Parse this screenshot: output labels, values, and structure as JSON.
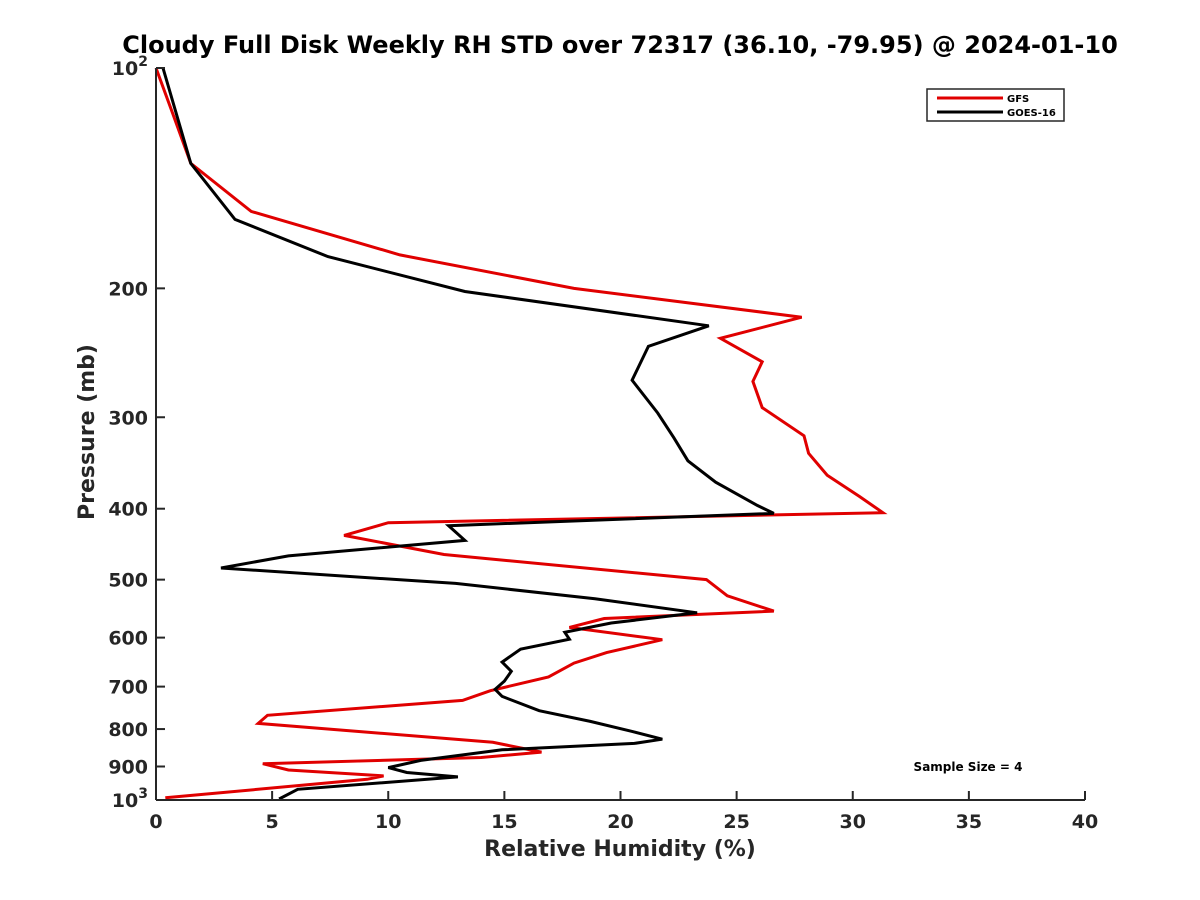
{
  "chart_data": {
    "type": "line",
    "title": "Cloudy Full Disk Weekly RH STD over 72317 (36.10, -79.95) @ 2024-01-10",
    "xlabel": "Relative Humidity (%)",
    "ylabel": "Pressure (mb)",
    "xlim": [
      0,
      40
    ],
    "ylim": [
      1000,
      100
    ],
    "y_scale": "log",
    "x_ticks": [
      "0",
      "5",
      "10",
      "15",
      "20",
      "25",
      "30",
      "35",
      "40"
    ],
    "y_ticks": [
      {
        "value": 100,
        "base": "10",
        "exp": "2"
      },
      {
        "value": 200,
        "label": "200"
      },
      {
        "value": 300,
        "label": "300"
      },
      {
        "value": 400,
        "label": "400"
      },
      {
        "value": 500,
        "label": "500"
      },
      {
        "value": 600,
        "label": "600"
      },
      {
        "value": 700,
        "label": "700"
      },
      {
        "value": 800,
        "label": "800"
      },
      {
        "value": 900,
        "label": "900"
      },
      {
        "value": 1000,
        "base": "10",
        "exp": "3"
      }
    ],
    "legend_position": "top-right",
    "grid": false,
    "annotation": "Sample Size = 4",
    "series": [
      {
        "name": "GFS",
        "color": "#e00000",
        "points": [
          [
            0.0,
            100
          ],
          [
            0.7,
            115
          ],
          [
            1.5,
            135
          ],
          [
            4.1,
            157
          ],
          [
            10.5,
            180
          ],
          [
            18.0,
            200
          ],
          [
            27.8,
            219
          ],
          [
            24.3,
            234
          ],
          [
            26.1,
            252
          ],
          [
            25.7,
            268
          ],
          [
            26.1,
            291
          ],
          [
            27.9,
            318
          ],
          [
            28.1,
            336
          ],
          [
            28.9,
            360
          ],
          [
            30.3,
            385
          ],
          [
            31.3,
            405
          ],
          [
            10.0,
            418
          ],
          [
            8.1,
            435
          ],
          [
            12.4,
            462
          ],
          [
            23.7,
            500
          ],
          [
            24.6,
            526
          ],
          [
            26.6,
            552
          ],
          [
            19.3,
            565
          ],
          [
            17.8,
            581
          ],
          [
            21.8,
            604
          ],
          [
            19.4,
            629
          ],
          [
            18.0,
            650
          ],
          [
            16.9,
            679
          ],
          [
            14.4,
            709
          ],
          [
            13.2,
            731
          ],
          [
            4.8,
            766
          ],
          [
            4.4,
            786
          ],
          [
            14.5,
            834
          ],
          [
            16.6,
            860
          ],
          [
            14.0,
            875
          ],
          [
            4.6,
            892
          ],
          [
            5.7,
            910
          ],
          [
            9.8,
            927
          ],
          [
            9.1,
            937
          ],
          [
            0.4,
            993
          ]
        ]
      },
      {
        "name": "GOES-16",
        "color": "#000000",
        "points": [
          [
            0.3,
            100
          ],
          [
            1.5,
            135
          ],
          [
            3.4,
            161
          ],
          [
            7.4,
            181
          ],
          [
            13.3,
            202
          ],
          [
            23.8,
            225
          ],
          [
            21.2,
            240
          ],
          [
            20.5,
            267
          ],
          [
            21.6,
            296
          ],
          [
            22.3,
            320
          ],
          [
            22.9,
            344
          ],
          [
            24.1,
            368
          ],
          [
            25.9,
            396
          ],
          [
            26.6,
            406
          ],
          [
            12.6,
            422
          ],
          [
            13.3,
            442
          ],
          [
            5.7,
            464
          ],
          [
            2.8,
            482
          ],
          [
            12.9,
            506
          ],
          [
            18.9,
            531
          ],
          [
            23.3,
            555
          ],
          [
            19.6,
            573
          ],
          [
            17.6,
            590
          ],
          [
            17.8,
            603
          ],
          [
            15.7,
            622
          ],
          [
            14.9,
            648
          ],
          [
            15.3,
            667
          ],
          [
            15.0,
            688
          ],
          [
            14.6,
            706
          ],
          [
            14.9,
            722
          ],
          [
            16.5,
            755
          ],
          [
            18.7,
            781
          ],
          [
            20.5,
            806
          ],
          [
            21.8,
            826
          ],
          [
            20.6,
            837
          ],
          [
            14.9,
            854
          ],
          [
            11.4,
            883
          ],
          [
            10.0,
            903
          ],
          [
            10.8,
            917
          ],
          [
            13.0,
            930
          ],
          [
            6.1,
            967
          ],
          [
            5.3,
            997
          ]
        ]
      }
    ]
  }
}
